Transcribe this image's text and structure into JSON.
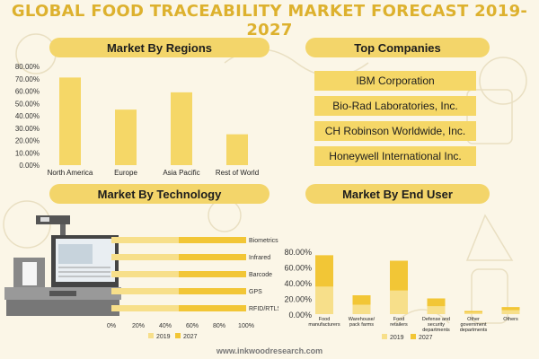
{
  "title": "GLOBAL FOOD TRACEABILITY MARKET FORECAST 2019-2027",
  "sections": {
    "regions": "Market By Regions",
    "companies": "Top Companies",
    "technology": "Market By Technology",
    "end_user": "Market By End User"
  },
  "companies": [
    "IBM Corporation",
    "Bio-Rad Laboratories, Inc.",
    "CH Robinson Worldwide, Inc.",
    "Honeywell International Inc."
  ],
  "footer": "www.inkwoodresearch.com",
  "colors": {
    "accent": "#f3d56a",
    "title": "#ddb12e",
    "bar_2019": "#f7df8a",
    "bar_2027": "#f2c636",
    "background": "#fbf6e7"
  },
  "chart_data": [
    {
      "type": "bar",
      "categories": [
        "North America",
        "Europe",
        "Asia Pacific",
        "Rest of World"
      ],
      "values": [
        71,
        45,
        59,
        25
      ],
      "xlabel": "",
      "ylabel": "",
      "ylim": [
        0,
        80
      ],
      "yticks": [
        "0.00%",
        "10.00%",
        "20.00%",
        "30.00%",
        "40.00%",
        "50.00%",
        "60.00%",
        "70.00%",
        "80.00%"
      ],
      "grid": false
    },
    {
      "type": "bar",
      "orientation": "horizontal",
      "categories": [
        "Biometrics",
        "Infrared",
        "Barcode",
        "GPS",
        "RFID/RTLS"
      ],
      "series": [
        {
          "name": "2019",
          "values": [
            50,
            50,
            50,
            50,
            50
          ]
        },
        {
          "name": "2027",
          "values": [
            50,
            50,
            50,
            50,
            50
          ]
        }
      ],
      "stacked": true,
      "xlim": [
        0,
        100
      ],
      "xticks": [
        "0%",
        "20%",
        "40%",
        "60%",
        "80%",
        "100%"
      ],
      "legend": "bottom",
      "grid": false
    },
    {
      "type": "bar",
      "categories": [
        "Food manufacturers",
        "Warehouse/ pack farms",
        "Food retailers",
        "Defense and security departments",
        "Other government departments",
        "Others"
      ],
      "series": [
        {
          "name": "2019",
          "values": [
            35,
            12,
            30,
            10,
            2,
            5
          ]
        },
        {
          "name": "2027",
          "values": [
            40,
            12,
            38,
            10,
            2,
            4
          ]
        }
      ],
      "stacked": true,
      "ylim": [
        0,
        80
      ],
      "yticks": [
        "0.00%",
        "20.00%",
        "40.00%",
        "60.00%",
        "80.00%"
      ],
      "legend": "bottom",
      "grid": false
    }
  ]
}
